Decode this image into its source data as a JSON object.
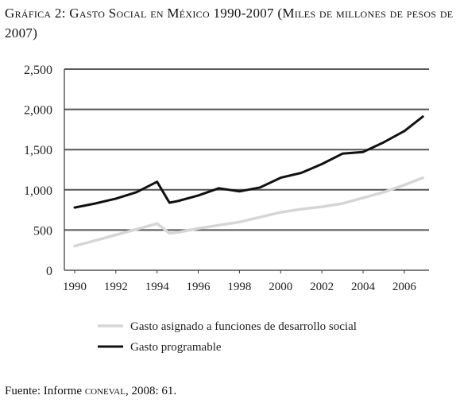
{
  "title": "Gráfica 2: Gasto Social en México 1990-2007 (Miles de millones de pesos de 2007)",
  "source": {
    "prefix": "Fuente: Informe ",
    "org": "coneval",
    "suffix": ", 2008: 61."
  },
  "colors": {
    "gasto_programable": "#111111",
    "gasto_social": "#d6d6d6",
    "grid": "#555555",
    "axis": "#333333"
  },
  "chart_data": {
    "type": "line",
    "title": "Gráfica 2: Gasto Social en México 1990-2007 (Miles de millones de pesos de 2007)",
    "xlabel": "",
    "ylabel": "",
    "xlim": [
      1989.5,
      2007.2
    ],
    "ylim": [
      0,
      2500
    ],
    "yticks": [
      0,
      500,
      1000,
      1500,
      2000,
      2500
    ],
    "ytick_labels": [
      "0",
      "500",
      "1,000",
      "1,500",
      "2,000",
      "2,500"
    ],
    "xticks": [
      1990,
      1992,
      1994,
      1996,
      1998,
      2000,
      2002,
      2004,
      2006
    ],
    "xtick_labels": [
      "1990",
      "1992",
      "1994",
      "1996",
      "1998",
      "2000",
      "2002",
      "2004",
      "2006"
    ],
    "grid": "horizontal",
    "legend": "bottom-center",
    "series": [
      {
        "name": "Gasto asignado a funciones de desarrollo social",
        "x": [
          1990,
          1991,
          1992,
          1993,
          1994,
          1994.6,
          1995,
          1996,
          1997,
          1998,
          1999,
          2000,
          2001,
          2002,
          2003,
          2004,
          2005,
          2006,
          2006.9
        ],
        "values": [
          300,
          370,
          440,
          510,
          580,
          460,
          470,
          520,
          560,
          600,
          660,
          720,
          760,
          790,
          830,
          900,
          970,
          1060,
          1150
        ]
      },
      {
        "name": "Gasto programable",
        "x": [
          1990,
          1991,
          1992,
          1993,
          1994,
          1994.6,
          1995,
          1996,
          1997,
          1998,
          1999,
          2000,
          2001,
          2002,
          2003,
          2004,
          2005,
          2006,
          2006.9
        ],
        "values": [
          780,
          830,
          890,
          970,
          1100,
          840,
          860,
          930,
          1020,
          980,
          1030,
          1150,
          1210,
          1320,
          1450,
          1470,
          1590,
          1730,
          1910
        ]
      }
    ]
  }
}
